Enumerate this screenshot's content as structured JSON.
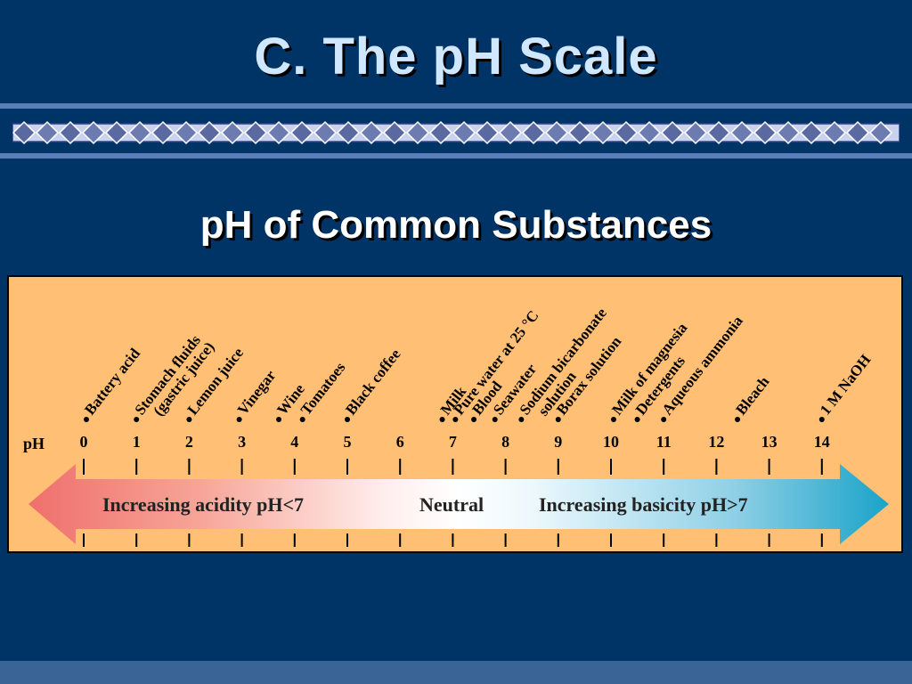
{
  "slide": {
    "title": "C. The pH Scale",
    "subtitle": "pH of Common Substances"
  },
  "scale": {
    "axis_label": "pH",
    "ticks": [
      "0",
      "1",
      "2",
      "3",
      "4",
      "5",
      "6",
      "7",
      "8",
      "9",
      "10",
      "11",
      "12",
      "13",
      "14"
    ],
    "acidity_label": "Increasing acidity pH<7",
    "neutral_label": "Neutral",
    "basicity_label": "Increasing basicity pH>7"
  },
  "substances": [
    {
      "lines": [
        "Battery acid"
      ],
      "ph": 0.05
    },
    {
      "lines": [
        "Stomach fluids",
        "(gastric juice)"
      ],
      "ph": 1.0
    },
    {
      "lines": [
        "Lemon juice"
      ],
      "ph": 2.0
    },
    {
      "lines": [
        "Vinegar"
      ],
      "ph": 2.95
    },
    {
      "lines": [
        "Wine"
      ],
      "ph": 3.7
    },
    {
      "lines": [
        "Tomatoes"
      ],
      "ph": 4.15
    },
    {
      "lines": [
        "Black coffee"
      ],
      "ph": 5.0
    },
    {
      "lines": [
        "Milk"
      ],
      "ph": 6.8
    },
    {
      "lines": [
        "Pure water at 25 °C"
      ],
      "ph": 7.05
    },
    {
      "lines": [
        "Blood"
      ],
      "ph": 7.4
    },
    {
      "lines": [
        "Seawater"
      ],
      "ph": 7.8
    },
    {
      "lines": [
        "Sodium bicarbonate",
        "solution"
      ],
      "ph": 8.3
    },
    {
      "lines": [
        "Borax solution"
      ],
      "ph": 9.0
    },
    {
      "lines": [
        "Milk of magnesia"
      ],
      "ph": 10.05
    },
    {
      "lines": [
        "Detergents"
      ],
      "ph": 10.5
    },
    {
      "lines": [
        "Aqueous ammonia"
      ],
      "ph": 11.0
    },
    {
      "lines": [
        "Bleach"
      ],
      "ph": 12.4
    },
    {
      "lines": [
        "1 M NaOH"
      ],
      "ph": 14.0
    }
  ],
  "colors": {
    "background": "#003366",
    "title": "#cfe8ff",
    "panel": "#ffbf75",
    "acid_arrow": "#ef6f6c",
    "base_arrow": "#1aa3c8",
    "diamond_fill": "#5a6aa0",
    "diamond_band": "#c9d3ee"
  }
}
